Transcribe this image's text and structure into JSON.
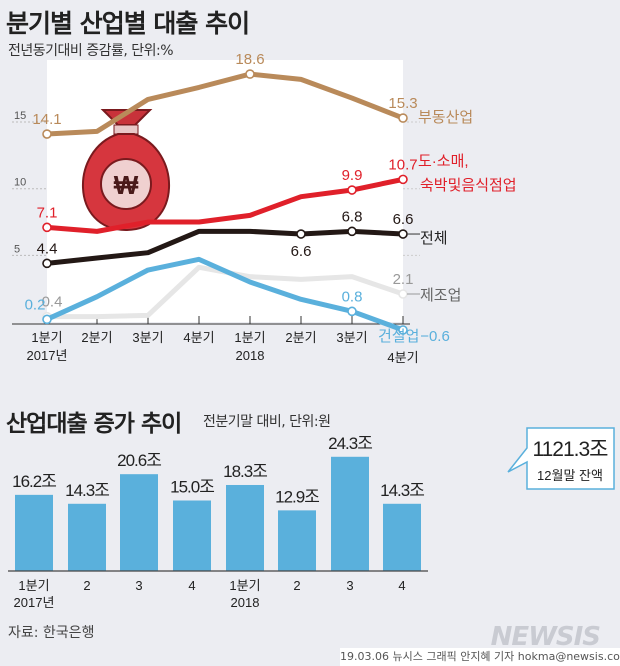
{
  "header": {
    "title": "분기별 산업별 대출 추이",
    "subtitle": "전년동기대비 증감률, 단위:%"
  },
  "colors": {
    "부동산업": "#b98a5a",
    "도소매": "#e0202a",
    "전체": "#231815",
    "제조업": "#e6e6e6",
    "건설업": "#5ab0dc",
    "bar": "#5ab0dc"
  },
  "chart_data": [
    {
      "type": "line",
      "title": "분기별 산업별 대출 추이",
      "subtitle": "전년동기대비 증감률, 단위:%",
      "categories": [
        "1분기",
        "2분기",
        "3분기",
        "4분기",
        "1분기",
        "2분기",
        "3분기",
        "4분기"
      ],
      "year_labels": [
        "2017년",
        "2018"
      ],
      "yticks": [
        "15",
        "10",
        "5"
      ],
      "ylim": [
        -1,
        20
      ],
      "series": [
        {
          "name": "부동산업",
          "values": [
            14.1,
            14.3,
            16.7,
            17.6,
            18.6,
            18.2,
            16.8,
            15.3
          ],
          "labels": {
            "0": "14.1",
            "4": "18.6",
            "7": "15.3"
          }
        },
        {
          "name": "도·소매,",
          "name2": "숙박및음식점업",
          "values": [
            7.1,
            6.8,
            7.5,
            7.5,
            8.0,
            9.4,
            9.9,
            10.7
          ],
          "labels": {
            "0": "7.1",
            "6": "9.9",
            "7": "10.7"
          }
        },
        {
          "name": "전체",
          "values": [
            4.4,
            4.8,
            5.2,
            6.8,
            6.8,
            6.6,
            6.8,
            6.6
          ],
          "labels": {
            "0": "4.4",
            "5": "6.6",
            "6": "6.8",
            "7": "6.6"
          }
        },
        {
          "name": "제조업",
          "values": [
            0.4,
            0.4,
            0.5,
            4.1,
            3.4,
            3.2,
            3.4,
            2.1
          ],
          "labels": {
            "0": "0.4",
            "7": "2.1"
          }
        },
        {
          "name": "건설업",
          "values": [
            0.2,
            1.9,
            3.9,
            4.7,
            3.0,
            1.7,
            0.8,
            -0.6
          ],
          "labels": {
            "0": "0.2",
            "6": "0.8",
            "7": "−0.6"
          }
        }
      ]
    },
    {
      "type": "bar",
      "title": "산업대출 증가 추이",
      "subtitle": "전분기말 대비, 단위:원",
      "categories": [
        "1분기",
        "2",
        "3",
        "4",
        "1분기",
        "2",
        "3",
        "4"
      ],
      "year_labels": [
        "2017년",
        "2018"
      ],
      "values": [
        16.2,
        14.3,
        20.6,
        15.0,
        18.3,
        12.9,
        24.3,
        14.3
      ],
      "value_labels": [
        "16.2조",
        "14.3조",
        "20.6조",
        "15.0조",
        "18.3조",
        "12.9조",
        "24.3조",
        "14.3조"
      ],
      "callout": {
        "value": "1121.3조",
        "label": "12월말 잔액"
      }
    }
  ],
  "footer": {
    "source": "자료: 한국은행",
    "credit": "19.03.06 뉴시스 그래픽 안지혜 기자 hokma@newsis.com",
    "logo": "NEWSIS"
  }
}
